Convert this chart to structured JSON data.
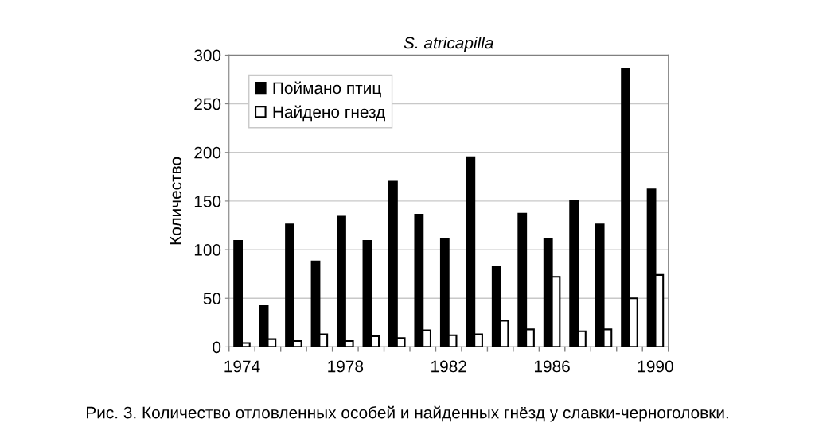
{
  "chart_data": {
    "type": "bar",
    "title": "S. atricapilla",
    "ylabel": "Количество",
    "categories": [
      "1974",
      null,
      null,
      null,
      "1978",
      null,
      null,
      null,
      "1982",
      null,
      null,
      null,
      "1986",
      null,
      null,
      null,
      "1990"
    ],
    "series": [
      {
        "name": "Поймано птиц",
        "color": "#000000",
        "values": [
          109,
          42,
          126,
          88,
          134,
          109,
          170,
          136,
          111,
          195,
          82,
          137,
          111,
          150,
          126,
          286,
          162
        ]
      },
      {
        "name": "Найдено гнезд",
        "color": "#ffffff",
        "values": [
          4,
          8,
          6,
          13,
          6,
          11,
          9,
          17,
          12,
          13,
          27,
          18,
          72,
          16,
          18,
          50,
          74
        ]
      }
    ],
    "ylim": [
      0,
      300
    ],
    "yticks": [
      0,
      50,
      100,
      150,
      200,
      250,
      300
    ],
    "grid": "y",
    "legend": "top left",
    "annotations": [
      "Рис. 3. Количество отловленных особей и найденных гнёзд у славки-черноголовки."
    ]
  }
}
